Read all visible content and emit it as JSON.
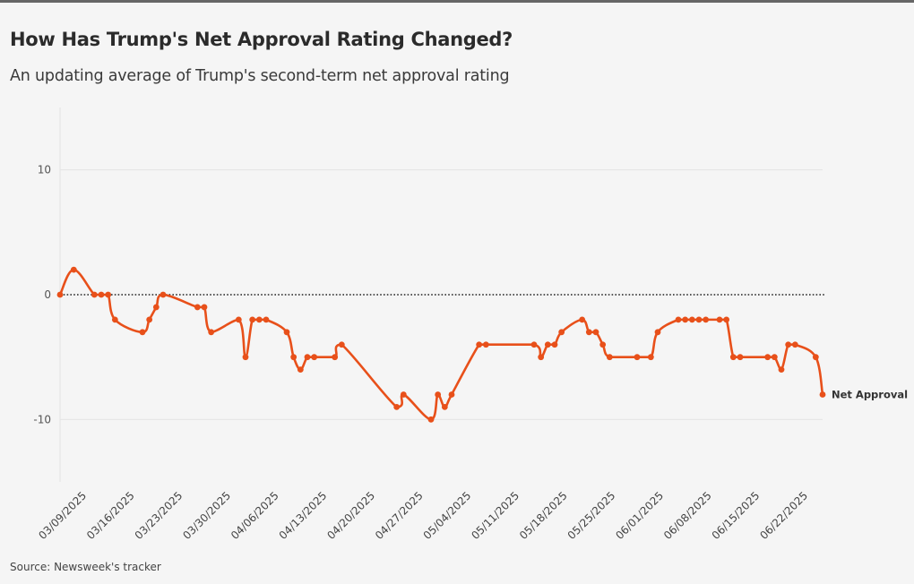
{
  "header": {
    "title": "How Has Trump's Net Approval Rating Changed?",
    "subtitle": "An updating average of Trump's second-term net approval rating"
  },
  "footer": {
    "source": "Source: Newsweek's tracker"
  },
  "colors": {
    "series": "#e8501a",
    "grid": "#e4e4e4",
    "zero_line": "#222222",
    "background": "#f5f5f5"
  },
  "chart_data": {
    "type": "line",
    "title": "How Has Trump's Net Approval Rating Changed?",
    "subtitle": "An updating average of Trump's second-term net approval rating",
    "xlabel": "",
    "ylabel": "",
    "xlim": [
      "2025-03-09",
      "2025-06-28"
    ],
    "ylim": [
      -15,
      15
    ],
    "y_ticks": [
      10,
      0,
      -10
    ],
    "x_tick_labels": [
      "03/09/2025",
      "03/16/2025",
      "03/23/2025",
      "03/30/2025",
      "04/06/2025",
      "04/13/2025",
      "04/20/2025",
      "04/27/2025",
      "05/04/2025",
      "05/11/2025",
      "05/18/2025",
      "05/25/2025",
      "06/01/2025",
      "06/08/2025",
      "06/15/2025",
      "06/22/2025"
    ],
    "grid": true,
    "reference_line": 0,
    "series": [
      {
        "name": "Net Approval",
        "points": [
          [
            "2025-03-09",
            0
          ],
          [
            "2025-03-11",
            2
          ],
          [
            "2025-03-14",
            0
          ],
          [
            "2025-03-15",
            0
          ],
          [
            "2025-03-16",
            0
          ],
          [
            "2025-03-17",
            -2
          ],
          [
            "2025-03-21",
            -3
          ],
          [
            "2025-03-22",
            -2
          ],
          [
            "2025-03-23",
            -1
          ],
          [
            "2025-03-24",
            0
          ],
          [
            "2025-03-29",
            -1
          ],
          [
            "2025-03-30",
            -1
          ],
          [
            "2025-03-31",
            -3
          ],
          [
            "2025-04-04",
            -2
          ],
          [
            "2025-04-05",
            -5
          ],
          [
            "2025-04-06",
            -2
          ],
          [
            "2025-04-07",
            -2
          ],
          [
            "2025-04-08",
            -2
          ],
          [
            "2025-04-11",
            -3
          ],
          [
            "2025-04-12",
            -5
          ],
          [
            "2025-04-13",
            -6
          ],
          [
            "2025-04-14",
            -5
          ],
          [
            "2025-04-15",
            -5
          ],
          [
            "2025-04-18",
            -5
          ],
          [
            "2025-04-19",
            -4
          ],
          [
            "2025-04-27",
            -9
          ],
          [
            "2025-04-28",
            -8
          ],
          [
            "2025-05-02",
            -10
          ],
          [
            "2025-05-03",
            -8
          ],
          [
            "2025-05-04",
            -9
          ],
          [
            "2025-05-05",
            -8
          ],
          [
            "2025-05-09",
            -4
          ],
          [
            "2025-05-10",
            -4
          ],
          [
            "2025-05-17",
            -4
          ],
          [
            "2025-05-18",
            -5
          ],
          [
            "2025-05-19",
            -4
          ],
          [
            "2025-05-20",
            -4
          ],
          [
            "2025-05-21",
            -3
          ],
          [
            "2025-05-24",
            -2
          ],
          [
            "2025-05-25",
            -3
          ],
          [
            "2025-05-26",
            -3
          ],
          [
            "2025-05-27",
            -4
          ],
          [
            "2025-05-28",
            -5
          ],
          [
            "2025-06-01",
            -5
          ],
          [
            "2025-06-03",
            -5
          ],
          [
            "2025-06-04",
            -3
          ],
          [
            "2025-06-07",
            -2
          ],
          [
            "2025-06-08",
            -2
          ],
          [
            "2025-06-09",
            -2
          ],
          [
            "2025-06-10",
            -2
          ],
          [
            "2025-06-11",
            -2
          ],
          [
            "2025-06-13",
            -2
          ],
          [
            "2025-06-14",
            -2
          ],
          [
            "2025-06-15",
            -5
          ],
          [
            "2025-06-16",
            -5
          ],
          [
            "2025-06-20",
            -5
          ],
          [
            "2025-06-21",
            -5
          ],
          [
            "2025-06-22",
            -6
          ],
          [
            "2025-06-23",
            -4
          ],
          [
            "2025-06-24",
            -4
          ],
          [
            "2025-06-27",
            -5
          ],
          [
            "2025-06-28",
            -8
          ]
        ]
      }
    ]
  }
}
